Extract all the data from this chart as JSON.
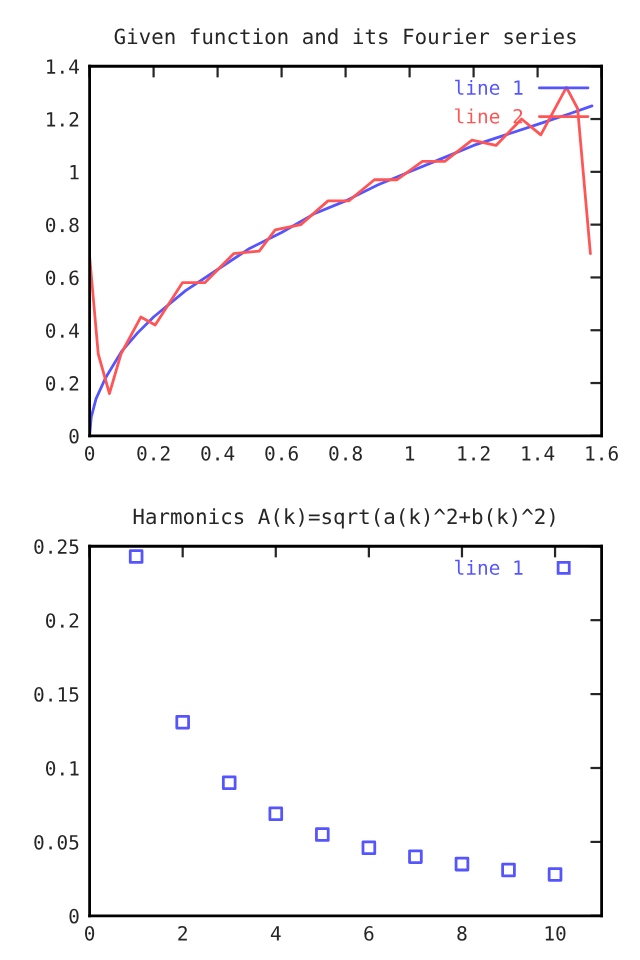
{
  "chart_data": [
    {
      "type": "line",
      "title": "Given function and its Fourier series",
      "xlim": [
        0,
        1.6
      ],
      "ylim": [
        0,
        1.4
      ],
      "xticks": [
        0,
        0.2,
        0.4,
        0.6,
        0.8,
        1,
        1.2,
        1.4,
        1.6
      ],
      "yticks": [
        0,
        0.2,
        0.4,
        0.6,
        0.8,
        1,
        1.2,
        1.4
      ],
      "legend": "top right",
      "grid": false,
      "series": [
        {
          "name": "line 1",
          "color": "#5555ff",
          "x": [
            0,
            0.005,
            0.02,
            0.05,
            0.1,
            0.15,
            0.2,
            0.3,
            0.4,
            0.5,
            0.6,
            0.7,
            0.8,
            0.9,
            1.0,
            1.1,
            1.2,
            1.3,
            1.4,
            1.5,
            1.57
          ],
          "values": [
            0,
            0.07,
            0.14,
            0.22,
            0.32,
            0.39,
            0.45,
            0.55,
            0.63,
            0.71,
            0.77,
            0.84,
            0.89,
            0.95,
            1.0,
            1.05,
            1.1,
            1.14,
            1.18,
            1.22,
            1.25
          ]
        },
        {
          "name": "line 2",
          "color": "#ff5555",
          "x": [
            0,
            0.027,
            0.062,
            0.098,
            0.16,
            0.205,
            0.29,
            0.36,
            0.45,
            0.53,
            0.58,
            0.66,
            0.745,
            0.81,
            0.89,
            0.96,
            1.04,
            1.11,
            1.195,
            1.27,
            1.35,
            1.41,
            1.49,
            1.525,
            1.565
          ],
          "values": [
            0.68,
            0.31,
            0.16,
            0.31,
            0.45,
            0.42,
            0.58,
            0.58,
            0.69,
            0.7,
            0.78,
            0.8,
            0.89,
            0.89,
            0.97,
            0.97,
            1.04,
            1.04,
            1.12,
            1.1,
            1.2,
            1.14,
            1.32,
            1.24,
            0.69
          ]
        }
      ]
    },
    {
      "type": "scatter",
      "title": "Harmonics A(k)=sqrt(a(k)^2+b(k)^2)",
      "xlim": [
        0,
        11
      ],
      "ylim": [
        0,
        0.25
      ],
      "xticks": [
        0,
        2,
        4,
        6,
        8,
        10
      ],
      "yticks": [
        0,
        0.05,
        0.1,
        0.15,
        0.2,
        0.25
      ],
      "legend": "top right",
      "grid": false,
      "marker": "square",
      "series": [
        {
          "name": "line 1",
          "color": "#5555ff",
          "x": [
            1,
            2,
            3,
            4,
            5,
            6,
            7,
            8,
            9,
            10
          ],
          "values": [
            0.243,
            0.131,
            0.09,
            0.069,
            0.055,
            0.046,
            0.04,
            0.035,
            0.031,
            0.028
          ]
        }
      ]
    }
  ]
}
